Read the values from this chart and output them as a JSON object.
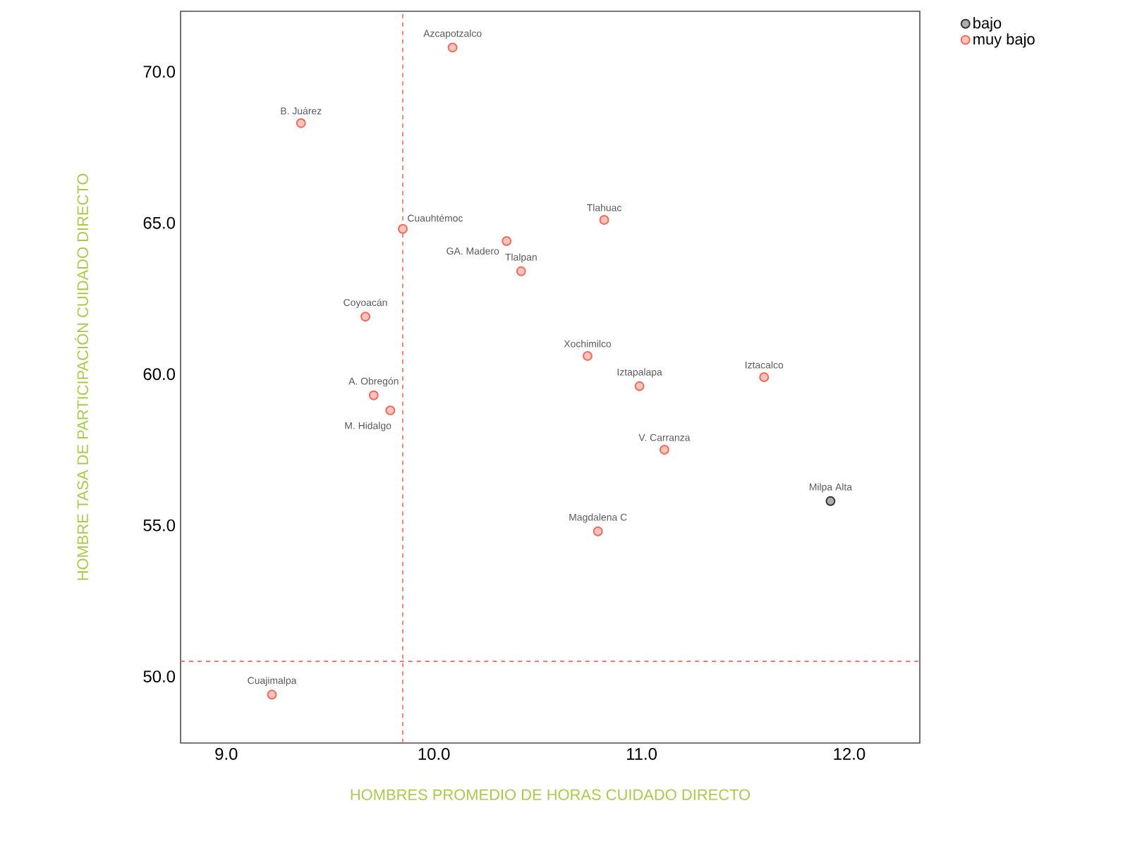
{
  "chart_data": {
    "type": "scatter",
    "xlabel": "HOMBRES PROMEDIO DE HORAS CUIDADO DIRECTO",
    "ylabel": "HOMBRE TASA DE PARTICIPACIÓN CUIDADO DIRECTO",
    "xlim": [
      8.78,
      12.34
    ],
    "ylim": [
      47.8,
      72
    ],
    "xticks": [
      {
        "value": 9,
        "label": "9.0"
      },
      {
        "value": 10,
        "label": "10.0"
      },
      {
        "value": 11,
        "label": "11.0"
      },
      {
        "value": 12,
        "label": "12.0"
      }
    ],
    "yticks": [
      {
        "value": 50,
        "label": "50.0"
      },
      {
        "value": 55,
        "label": "55.0"
      },
      {
        "value": 60,
        "label": "60.0"
      },
      {
        "value": 65,
        "label": "65.0"
      },
      {
        "value": 70,
        "label": "70.0"
      }
    ],
    "grid": false,
    "legend": "top right",
    "marker": "circle",
    "series": [
      {
        "name": "bajo",
        "color": "#333333",
        "x": [
          11.91
        ],
        "values": [
          55.8
        ]
      },
      {
        "name": "muy bajo",
        "color": "#f0695a",
        "x": [
          10.09,
          9.36,
          9.85,
          10.82,
          10.35,
          10.42,
          9.67,
          10.74,
          11.59,
          10.99,
          9.71,
          9.79,
          11.11,
          10.79,
          9.22
        ],
        "values": [
          70.8,
          68.3,
          64.8,
          65.1,
          64.4,
          63.4,
          61.9,
          60.6,
          59.9,
          59.6,
          59.3,
          58.8,
          57.5,
          54.8,
          49.4
        ]
      }
    ],
    "ref_lines": [
      {
        "axis": "x",
        "value": 9.85,
        "color": "#f0695a",
        "line_style": "dashed"
      },
      {
        "axis": "y",
        "value": 50.5,
        "color": "#f0695a",
        "line_style": "dashed"
      }
    ],
    "annotations": [
      {
        "text": "Milpa Alta",
        "x": 11.91,
        "y": 55.8
      },
      {
        "text": "Azcapotzalco",
        "x": 10.09,
        "y": 70.8
      },
      {
        "text": "B. Juárez",
        "x": 9.36,
        "y": 68.3
      },
      {
        "text": "Cuauhtémoc",
        "x": 9.85,
        "y": 64.8
      },
      {
        "text": "Tlahuac",
        "x": 10.82,
        "y": 65.1
      },
      {
        "text": "GA. Madero",
        "x": 10.35,
        "y": 64.4
      },
      {
        "text": "Tlalpan",
        "x": 10.42,
        "y": 63.4
      },
      {
        "text": "Coyoacán",
        "x": 9.67,
        "y": 61.9
      },
      {
        "text": "Xochimilco",
        "x": 10.74,
        "y": 60.6
      },
      {
        "text": "Iztacalco",
        "x": 11.59,
        "y": 59.9
      },
      {
        "text": "Iztapalapa",
        "x": 10.99,
        "y": 59.6
      },
      {
        "text": "A. Obregón",
        "x": 9.71,
        "y": 59.3
      },
      {
        "text": "M. Hidalgo",
        "x": 9.79,
        "y": 58.8
      },
      {
        "text": "V. Carranza",
        "x": 11.11,
        "y": 57.5
      },
      {
        "text": "Magdalena C",
        "x": 10.79,
        "y": 54.8
      },
      {
        "text": "Cuajimalpa",
        "x": 9.22,
        "y": 49.4
      }
    ]
  }
}
